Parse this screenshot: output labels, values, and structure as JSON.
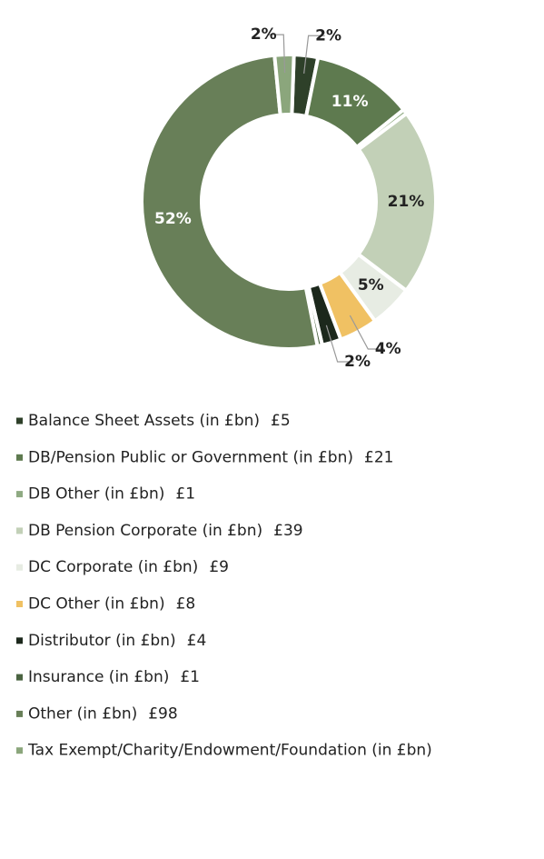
{
  "chart_data": {
    "type": "donut",
    "categories": [
      "Balance Sheet Assets (in £bn)",
      "DB/Pension Public or Government (in £bn)",
      "DB Other (in £bn)",
      "DB Pension Corporate (in £bn)",
      "DC Corporate (in £bn)",
      "DC Other (in £bn)",
      "Distributor (in £bn)",
      "Insurance (in £bn)",
      "Other (in £bn)",
      "Tax Exempt/Charity/Endowment/Foundation (in £bn)"
    ],
    "values": [
      5,
      21,
      1,
      39,
      9,
      8,
      4,
      1,
      98,
      4
    ],
    "value_labels": [
      "£5",
      "£21",
      "£1",
      "£39",
      "£9",
      "£8",
      "£4",
      "£1",
      "£98",
      null
    ],
    "percent_labels": [
      "2%",
      "11%",
      null,
      "21%",
      "5%",
      "4%",
      "2%",
      null,
      "52%",
      "2%"
    ],
    "colors": [
      "#2e4029",
      "#5e7a4f",
      "#8faa82",
      "#c2d0b7",
      "#e7ece3",
      "#f0c163",
      "#1c281c",
      "#4a6341",
      "#687f58",
      "#8ba67c"
    ]
  }
}
